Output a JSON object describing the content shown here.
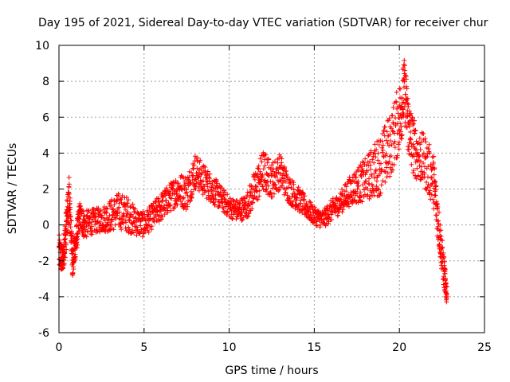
{
  "chart_data": {
    "type": "scatter",
    "title": "Day 195 of 2021, Sidereal Day-to-day VTEC variation (SDTVAR) for receiver chur",
    "xlabel": "GPS time / hours",
    "ylabel": "SDTVAR / TECUs",
    "xlim": [
      0,
      25
    ],
    "ylim": [
      -6,
      10
    ],
    "xticks": [
      0,
      5,
      10,
      15,
      20,
      25
    ],
    "yticks": [
      -6,
      -4,
      -2,
      0,
      2,
      4,
      6,
      8,
      10
    ],
    "grid": true,
    "marker": "+",
    "marker_color": "#ff0000",
    "series": [
      {
        "name": "SDTVAR",
        "note": "dense cloud of points; listed as center-line samples with spread",
        "x": [
          0.0,
          0.2,
          0.4,
          0.6,
          0.8,
          1.0,
          1.2,
          1.5,
          2.0,
          2.5,
          3.0,
          3.5,
          4.0,
          4.5,
          5.0,
          5.5,
          6.0,
          6.5,
          7.0,
          7.5,
          8.0,
          8.5,
          9.0,
          9.5,
          10.0,
          10.5,
          11.0,
          11.5,
          12.0,
          12.5,
          13.0,
          13.5,
          14.0,
          14.5,
          15.0,
          15.5,
          16.0,
          16.5,
          17.0,
          17.5,
          18.0,
          18.5,
          19.0,
          19.5,
          20.0,
          20.3,
          20.6,
          21.0,
          21.5,
          22.0,
          22.3,
          22.6,
          22.8
        ],
        "y": [
          -1.5,
          -2.0,
          -0.5,
          1.5,
          -2.0,
          -1.0,
          0.5,
          0.0,
          0.2,
          0.3,
          0.5,
          0.8,
          0.6,
          0.2,
          0.0,
          0.5,
          1.0,
          1.5,
          2.0,
          1.8,
          3.0,
          2.5,
          2.0,
          1.5,
          1.0,
          0.8,
          1.0,
          2.0,
          3.0,
          2.5,
          3.0,
          2.0,
          1.5,
          1.0,
          0.5,
          0.3,
          0.8,
          1.2,
          1.8,
          2.2,
          2.5,
          3.0,
          3.5,
          4.5,
          6.0,
          7.5,
          5.0,
          4.0,
          3.5,
          2.5,
          0.0,
          -2.5,
          -4.0
        ],
        "spread": [
          1.0,
          0.8,
          1.2,
          1.2,
          1.0,
          0.8,
          0.8,
          0.8,
          0.7,
          0.7,
          0.9,
          1.0,
          1.0,
          0.8,
          0.7,
          0.7,
          0.8,
          0.8,
          0.9,
          1.0,
          1.0,
          0.9,
          0.8,
          0.7,
          0.6,
          0.6,
          0.7,
          1.0,
          1.2,
          1.0,
          1.0,
          0.8,
          0.7,
          0.6,
          0.5,
          0.5,
          0.6,
          0.6,
          0.8,
          1.0,
          1.2,
          1.5,
          1.8,
          1.8,
          2.0,
          1.8,
          1.8,
          1.5,
          1.5,
          1.5,
          1.2,
          1.0,
          0.5
        ]
      }
    ]
  }
}
